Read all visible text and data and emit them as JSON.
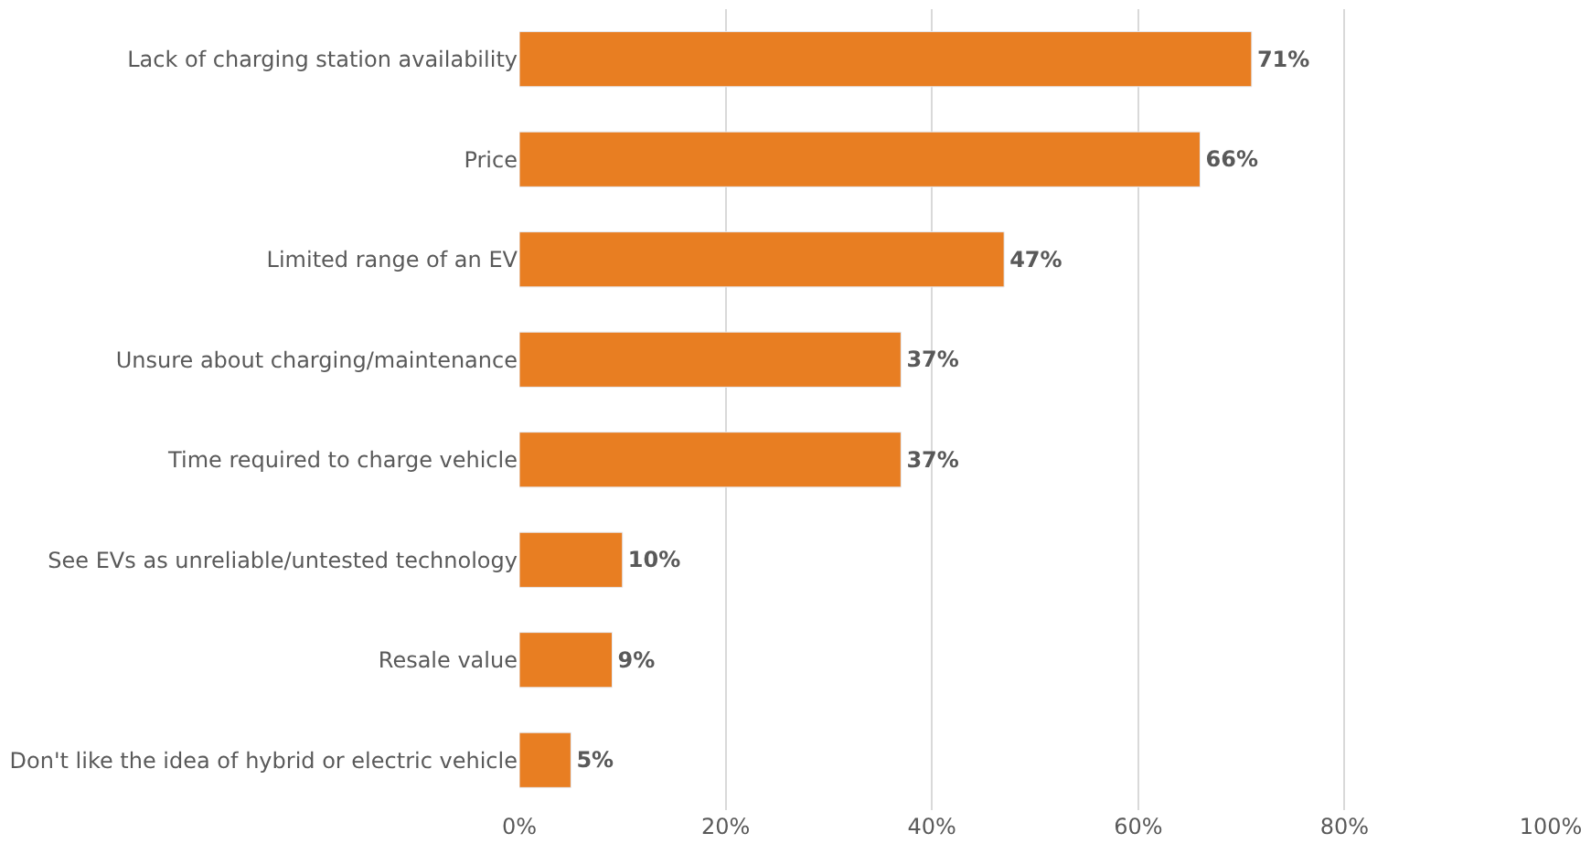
{
  "chart_data": {
    "type": "bar",
    "orientation": "horizontal",
    "categories": [
      "Lack of charging station availability",
      "Price",
      "Limited range of an EV",
      "Unsure about charging/maintenance",
      "Time required to charge vehicle",
      "See EVs as unreliable/untested technology",
      "Resale value",
      "Don't like the idea of hybrid or electric vehicle"
    ],
    "values": [
      71,
      66,
      47,
      37,
      37,
      10,
      9,
      5
    ],
    "value_labels": [
      "71%",
      "66%",
      "47%",
      "37%",
      "37%",
      "10%",
      "9%",
      "5%"
    ],
    "color": "#e87e22",
    "xlim": [
      0,
      100
    ],
    "xticks": [
      {
        "value": 0,
        "label": "0%"
      },
      {
        "value": 20,
        "label": "20%"
      },
      {
        "value": 40,
        "label": "40%"
      },
      {
        "value": 60,
        "label": "60%"
      },
      {
        "value": 80,
        "label": "80%"
      },
      {
        "value": 100,
        "label": "100%"
      }
    ],
    "grid": "x",
    "legend": false
  }
}
